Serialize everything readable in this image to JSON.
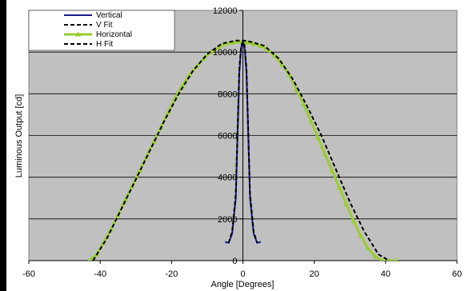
{
  "chart_data": {
    "type": "line",
    "title": "",
    "xlabel": "Angle [Degrees]",
    "ylabel": "Luminous Output [cd]",
    "xlim": [
      -60,
      60
    ],
    "ylim": [
      0,
      12000
    ],
    "x_ticks": [
      -60,
      -40,
      -20,
      0,
      20,
      40,
      60
    ],
    "y_ticks": [
      0,
      2000,
      4000,
      6000,
      8000,
      10000,
      12000
    ],
    "y_tick_labels": [
      "0",
      "2000",
      "4000",
      "6000",
      "8000",
      "10000",
      "12000"
    ],
    "grid": "horizontal",
    "legend_position": "top-left",
    "colors": {
      "plot_background": "#c0c0c0",
      "vertical": "#1a1a8c",
      "fit": "#000000",
      "horizontal": "#9acd32",
      "grid": "#000000"
    },
    "series": [
      {
        "name": "Vertical",
        "style": "solid",
        "x": [
          -5,
          -4,
          -3,
          -2,
          -1.5,
          -1,
          -0.5,
          0,
          0.5,
          1,
          1.5,
          2,
          3,
          4,
          5
        ],
        "y": [
          900,
          850,
          1300,
          3000,
          6000,
          9000,
          10200,
          10500,
          10200,
          9000,
          6000,
          3000,
          1300,
          850,
          900
        ]
      },
      {
        "name": "V Fit",
        "style": "dashed",
        "x": [
          -4,
          -3,
          -2,
          -1.5,
          -1,
          -0.5,
          0,
          0.5,
          1,
          1.5,
          2,
          3,
          4
        ],
        "y": [
          850,
          1400,
          3200,
          6200,
          9200,
          10300,
          10500,
          10300,
          9200,
          6200,
          3200,
          1400,
          850
        ]
      },
      {
        "name": "Horizontal",
        "style": "solid-markers",
        "x": [
          -43,
          -41,
          -39,
          -37,
          -35,
          -33,
          -31,
          -29,
          -27,
          -25,
          -23,
          -21,
          -19,
          -17,
          -15,
          -13,
          -11,
          -9,
          -7,
          -5,
          -3,
          -1,
          1,
          3,
          5,
          7,
          9,
          11,
          13,
          15,
          17,
          19,
          21,
          23,
          25,
          27,
          29,
          31,
          33,
          35,
          37,
          39,
          41,
          43
        ],
        "y": [
          0,
          300,
          900,
          1500,
          2200,
          2900,
          3600,
          4300,
          5000,
          5700,
          6400,
          7100,
          7800,
          8400,
          8900,
          9300,
          9700,
          10000,
          10200,
          10400,
          10450,
          10500,
          10450,
          10400,
          10300,
          10100,
          9800,
          9400,
          8900,
          8200,
          7500,
          6700,
          5900,
          5100,
          4300,
          3500,
          2700,
          1900,
          1200,
          600,
          200,
          0,
          0,
          0
        ]
      },
      {
        "name": "H Fit",
        "style": "dashed",
        "x": [
          -42,
          -38,
          -34,
          -30,
          -26,
          -22,
          -18,
          -14,
          -10,
          -6,
          -2,
          0,
          2,
          6,
          10,
          14,
          18,
          22,
          26,
          30,
          34,
          38,
          41
        ],
        "y": [
          0,
          1100,
          2500,
          3900,
          5300,
          6700,
          8000,
          9100,
          9900,
          10400,
          10550,
          10560,
          10500,
          10300,
          9700,
          8700,
          7400,
          6000,
          4400,
          2800,
          1400,
          300,
          0
        ]
      }
    ]
  }
}
